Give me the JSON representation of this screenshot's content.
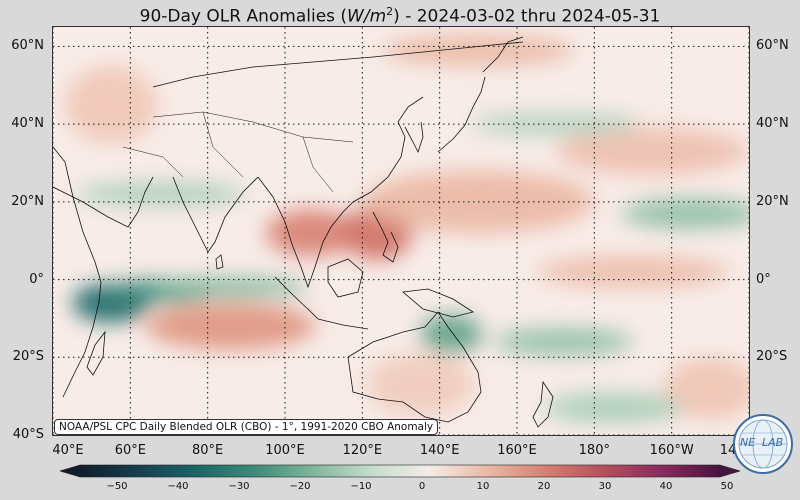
{
  "title": "90-Day OLR Anomalies (W/m²) - 2024-03-02 thru 2024-05-31",
  "title_parts": {
    "prefix": "90-Day OLR Anomalies (",
    "units": "W/m",
    "units_exp": "2",
    "suffix": ") - 2024-03-02 thru 2024-05-31"
  },
  "credit": "NOAA/PSL CPC Daily Blended OLR (CBO) - 1°, 1991-2020 CBO Anomaly",
  "logo": {
    "top_text": "NE",
    "bottom_text": "LAB"
  },
  "lat_labels": [
    "60°N",
    "40°N",
    "20°N",
    "0°",
    "20°S",
    "40°S"
  ],
  "lon_labels": [
    "40°E",
    "60°E",
    "80°E",
    "100°E",
    "120°E",
    "140°E",
    "160°E",
    "180°",
    "160°W",
    "14"
  ],
  "colorbar": {
    "ticks": [
      "−50",
      "−40",
      "−30",
      "−20",
      "−10",
      "0",
      "10",
      "20",
      "30",
      "40",
      "50"
    ],
    "colors": [
      "#0f1e2e",
      "#163f4d",
      "#1a6667",
      "#3c8c7a",
      "#7fb69b",
      "#c4dccb",
      "#f4ece8",
      "#e9b9a4",
      "#d77f70",
      "#b64f5c",
      "#8a2b5e",
      "#4a1240"
    ]
  },
  "map": {
    "lon_min": 40,
    "lon_max": 220,
    "lat_min": -40,
    "lat_max": 65,
    "background": "#f8ece8",
    "positive_anomalies": [
      {
        "lon": 107,
        "lat": 12,
        "rlon": 12,
        "rlat": 6,
        "color": "#d77f70"
      },
      {
        "lon": 124,
        "lat": 12,
        "rlon": 9,
        "rlat": 7,
        "color": "#cf6f63"
      },
      {
        "lon": 86,
        "lat": -12,
        "rlon": 22,
        "rlat": 6,
        "color": "#de9380"
      },
      {
        "lon": 150,
        "lat": 20,
        "rlon": 30,
        "rlat": 8,
        "color": "#eab7a3"
      },
      {
        "lon": 195,
        "lat": 33,
        "rlon": 25,
        "rlat": 6,
        "color": "#ecbfad"
      },
      {
        "lon": 150,
        "lat": 59,
        "rlon": 25,
        "rlat": 4,
        "color": "#e9b9a4"
      },
      {
        "lon": 190,
        "lat": 2,
        "rlon": 25,
        "rlat": 4,
        "color": "#ebbba8"
      },
      {
        "lon": 55,
        "lat": 45,
        "rlon": 12,
        "rlat": 10,
        "color": "#efc6b6"
      },
      {
        "lon": 135,
        "lat": -27,
        "rlon": 14,
        "rlat": 8,
        "color": "#f0cbbb"
      },
      {
        "lon": 210,
        "lat": -28,
        "rlon": 12,
        "rlat": 8,
        "color": "#eec4b3"
      }
    ],
    "negative_anomalies": [
      {
        "lon": 55,
        "lat": -6,
        "rlon": 10,
        "rlat": 5,
        "color": "#1a6667"
      },
      {
        "lon": 68,
        "lat": -3,
        "rlon": 14,
        "rlat": 3,
        "color": "#3c8c7a"
      },
      {
        "lon": 86,
        "lat": -2,
        "rlon": 20,
        "rlat": 2.5,
        "color": "#7fb69b"
      },
      {
        "lon": 143,
        "lat": -14,
        "rlon": 8,
        "rlat": 5,
        "color": "#5fa189"
      },
      {
        "lon": 172,
        "lat": -16,
        "rlon": 18,
        "rlat": 3.5,
        "color": "#8fbfa6"
      },
      {
        "lon": 205,
        "lat": 17,
        "rlon": 18,
        "rlat": 4,
        "color": "#8fbfa6"
      },
      {
        "lon": 68,
        "lat": 22,
        "rlon": 22,
        "rlat": 3,
        "color": "#a9cdb7"
      },
      {
        "lon": 170,
        "lat": 40,
        "rlon": 22,
        "rlat": 3,
        "color": "#b4d3c0"
      },
      {
        "lon": 185,
        "lat": -33,
        "rlon": 18,
        "rlat": 4,
        "color": "#a9cdb7"
      }
    ]
  }
}
